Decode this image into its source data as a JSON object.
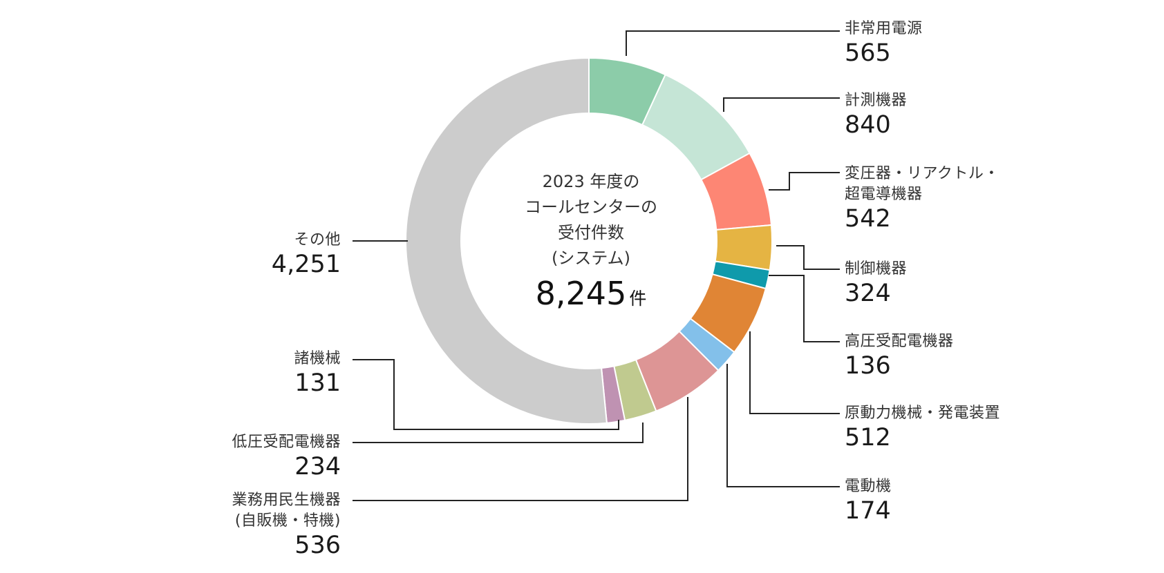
{
  "chart_data": {
    "type": "pie",
    "center_label": [
      "2023 年度の",
      "コールセンターの",
      "受付件数",
      "(システム)"
    ],
    "total": "8,245",
    "total_unit": "件",
    "slices": [
      {
        "label": "非常用電源",
        "value": 565,
        "value_text": "565",
        "color": "#8ccca9"
      },
      {
        "label": "計測機器",
        "value": 840,
        "value_text": "840",
        "color": "#c5e5d6"
      },
      {
        "label": "変圧器・リアクトル・超電導機器",
        "label_lines": [
          "変圧器・リアクトル・",
          "超電導機器"
        ],
        "value": 542,
        "value_text": "542",
        "color": "#fd8674"
      },
      {
        "label": "制御機器",
        "value": 324,
        "value_text": "324",
        "color": "#e5b443"
      },
      {
        "label": "高圧受配電機器",
        "value": 136,
        "value_text": "136",
        "color": "#0f9aab"
      },
      {
        "label": "原動力機械・発電装置",
        "value": 512,
        "value_text": "512",
        "color": "#e08535"
      },
      {
        "label": "電動機",
        "value": 174,
        "value_text": "174",
        "color": "#83c0ea"
      },
      {
        "label": "業務用民生機器(自販機・特機)",
        "label_lines": [
          "業務用民生機器",
          "(自販機・特機)"
        ],
        "value": 536,
        "value_text": "536",
        "color": "#dd9595"
      },
      {
        "label": "低圧受配電機器",
        "value": 234,
        "value_text": "234",
        "color": "#c0ca8f"
      },
      {
        "label": "諸機械",
        "value": 131,
        "value_text": "131",
        "color": "#bf92b2"
      },
      {
        "label": "その他",
        "value": 4251,
        "value_text": "4,251",
        "color": "#cccccc"
      }
    ]
  }
}
